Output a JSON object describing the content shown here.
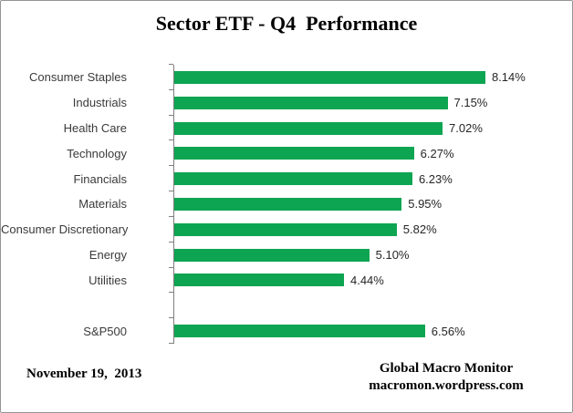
{
  "title": "Sector ETF - Q4  Performance",
  "footer": {
    "date": "November 19,  2013",
    "credit_line1": "Global Macro Monitor",
    "credit_line2": "macromon.wordpress.com"
  },
  "chart_data": {
    "type": "bar",
    "orientation": "horizontal",
    "title": "Sector ETF - Q4  Performance",
    "xlabel": "",
    "ylabel": "",
    "xlim": [
      0,
      9
    ],
    "grid": false,
    "legend": false,
    "bar_color": "#0da552",
    "axis_color": "#7f7f7f",
    "categories": [
      "Consumer Staples",
      "Industrials",
      "Health Care",
      "Technology",
      "Financials",
      "Materials",
      "Consumer Discretionary",
      "Energy",
      "Utilities",
      "",
      "S&P500"
    ],
    "values": [
      8.14,
      7.15,
      7.02,
      6.27,
      6.23,
      5.95,
      5.82,
      5.1,
      4.44,
      null,
      6.56
    ],
    "data_labels": [
      "8.14%",
      "7.15%",
      "7.02%",
      "6.27%",
      "6.23%",
      "5.95%",
      "5.82%",
      "5.10%",
      "4.44%",
      "",
      "6.56%"
    ]
  }
}
